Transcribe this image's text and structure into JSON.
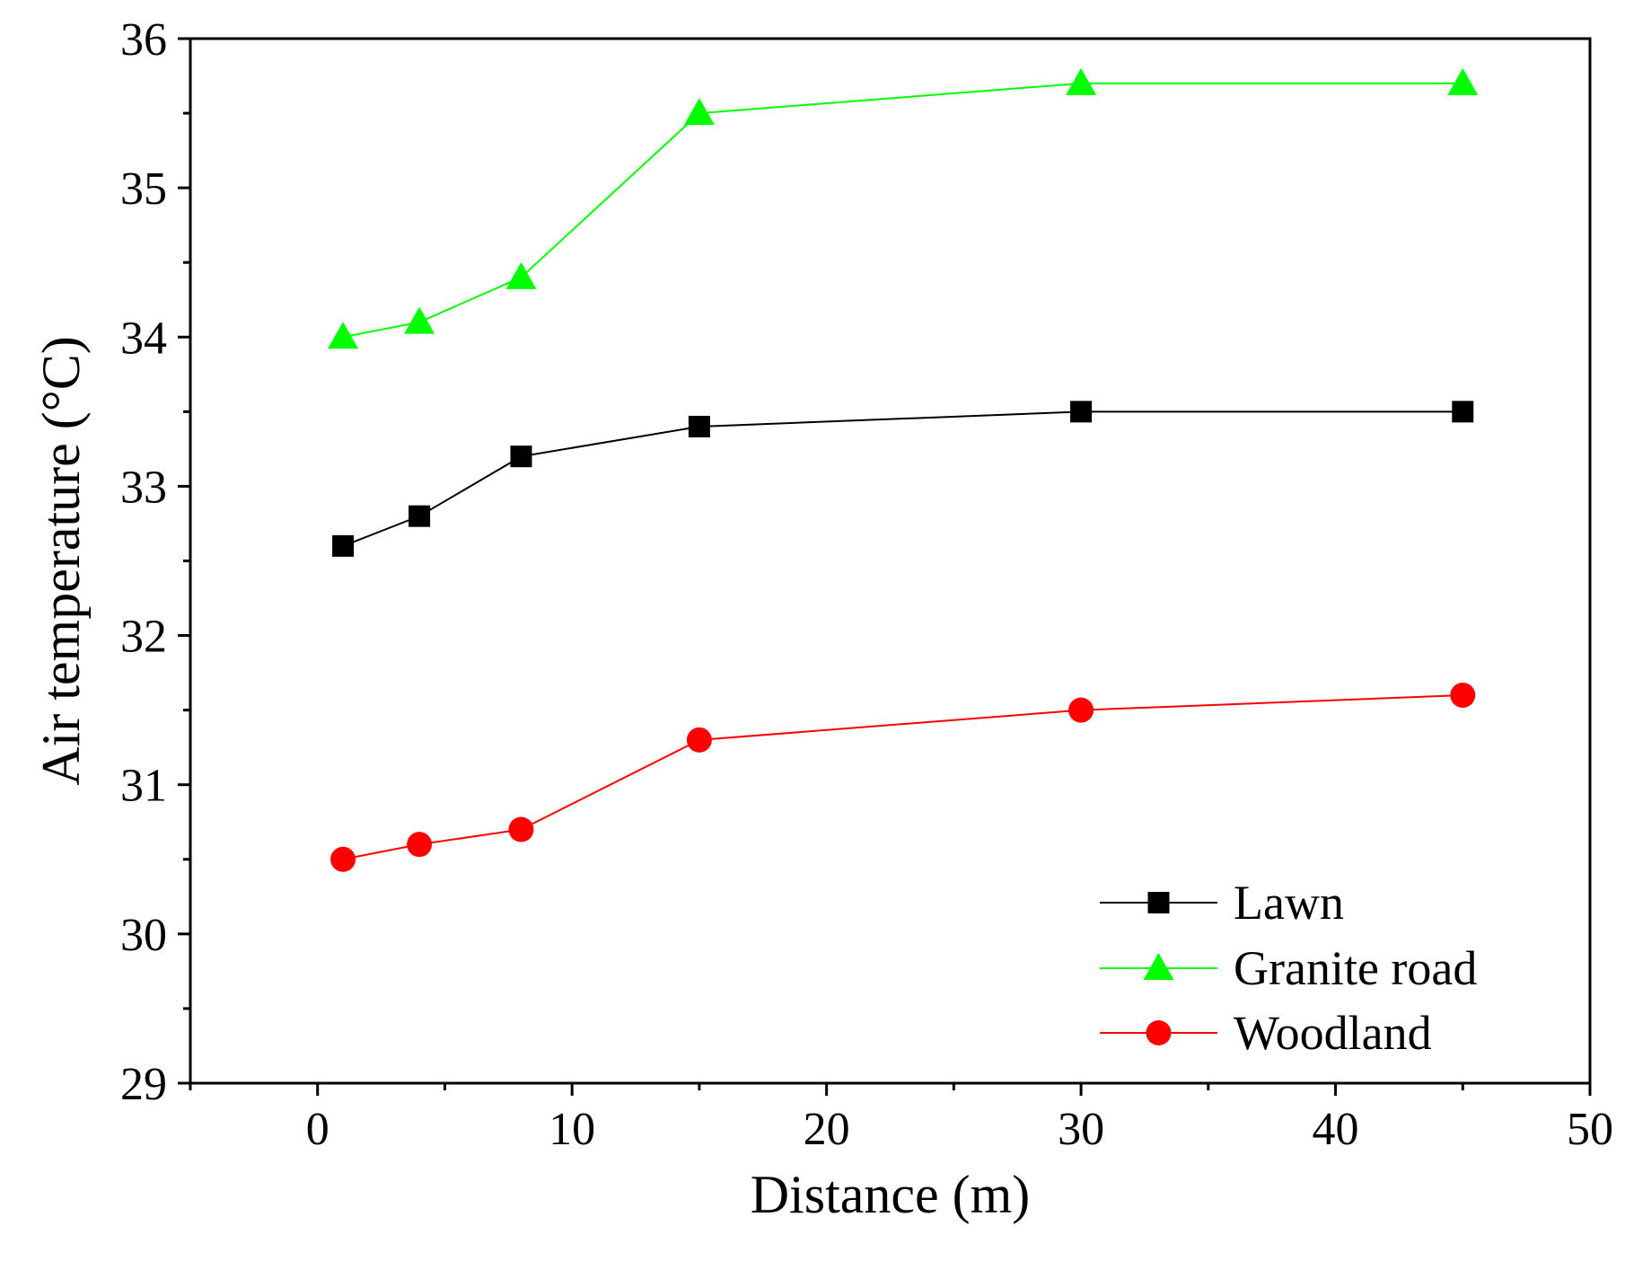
{
  "chart_data": {
    "type": "line",
    "title": "",
    "xlabel": "Distance (m)",
    "ylabel": "Air temperature (°C)",
    "xlim": [
      -5,
      50
    ],
    "ylim": [
      29,
      36
    ],
    "x_ticks": [
      0,
      10,
      20,
      30,
      40,
      50
    ],
    "y_ticks": [
      29,
      30,
      31,
      32,
      33,
      34,
      35,
      36
    ],
    "grid": false,
    "legend_position": "bottom-right",
    "x": [
      1,
      4,
      8,
      15,
      30,
      45
    ],
    "series": [
      {
        "name": "Lawn",
        "marker": "square",
        "color": "#000000",
        "values": [
          32.6,
          32.8,
          33.2,
          33.4,
          33.5,
          33.5
        ]
      },
      {
        "name": "Granite road",
        "marker": "triangle",
        "color": "#00ff00",
        "values": [
          34.0,
          34.1,
          34.4,
          35.5,
          35.7,
          35.7
        ]
      },
      {
        "name": "Woodland",
        "marker": "circle",
        "color": "#ff0000",
        "values": [
          30.5,
          30.6,
          30.7,
          31.3,
          31.5,
          31.6
        ]
      }
    ]
  }
}
